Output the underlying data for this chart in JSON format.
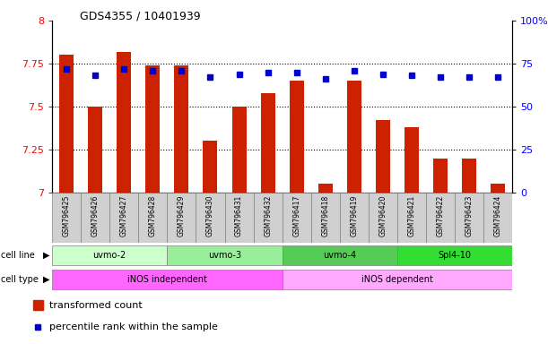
{
  "title": "GDS4355 / 10401939",
  "samples": [
    "GSM796425",
    "GSM796426",
    "GSM796427",
    "GSM796428",
    "GSM796429",
    "GSM796430",
    "GSM796431",
    "GSM796432",
    "GSM796417",
    "GSM796418",
    "GSM796419",
    "GSM796420",
    "GSM796421",
    "GSM796422",
    "GSM796423",
    "GSM796424"
  ],
  "red_values": [
    7.8,
    7.5,
    7.82,
    7.74,
    7.74,
    7.3,
    7.5,
    7.58,
    7.65,
    7.05,
    7.65,
    7.42,
    7.38,
    7.2,
    7.2,
    7.05
  ],
  "blue_values": [
    72,
    68,
    72,
    71,
    71,
    67,
    69,
    70,
    70,
    66,
    71,
    69,
    68,
    67,
    67,
    67
  ],
  "cell_lines": [
    {
      "label": "uvmo-2",
      "start": 0,
      "end": 4,
      "color": "#ccffcc"
    },
    {
      "label": "uvmo-3",
      "start": 4,
      "end": 8,
      "color": "#99ee99"
    },
    {
      "label": "uvmo-4",
      "start": 8,
      "end": 12,
      "color": "#55cc55"
    },
    {
      "label": "Spl4-10",
      "start": 12,
      "end": 16,
      "color": "#33dd33"
    }
  ],
  "cell_types": [
    {
      "label": "iNOS independent",
      "start": 0,
      "end": 8,
      "color": "#ff66ff"
    },
    {
      "label": "iNOS dependent",
      "start": 8,
      "end": 16,
      "color": "#ffaaff"
    }
  ],
  "ylim_left": [
    7.0,
    8.0
  ],
  "ylim_right": [
    0,
    100
  ],
  "yticks_left": [
    7.0,
    7.25,
    7.5,
    7.75,
    8.0
  ],
  "yticks_right": [
    0,
    25,
    50,
    75,
    100
  ],
  "bar_color": "#cc2200",
  "dot_color": "#0000cc",
  "tick_label_bg": "#d0d0d0",
  "grid_color": "#000000"
}
